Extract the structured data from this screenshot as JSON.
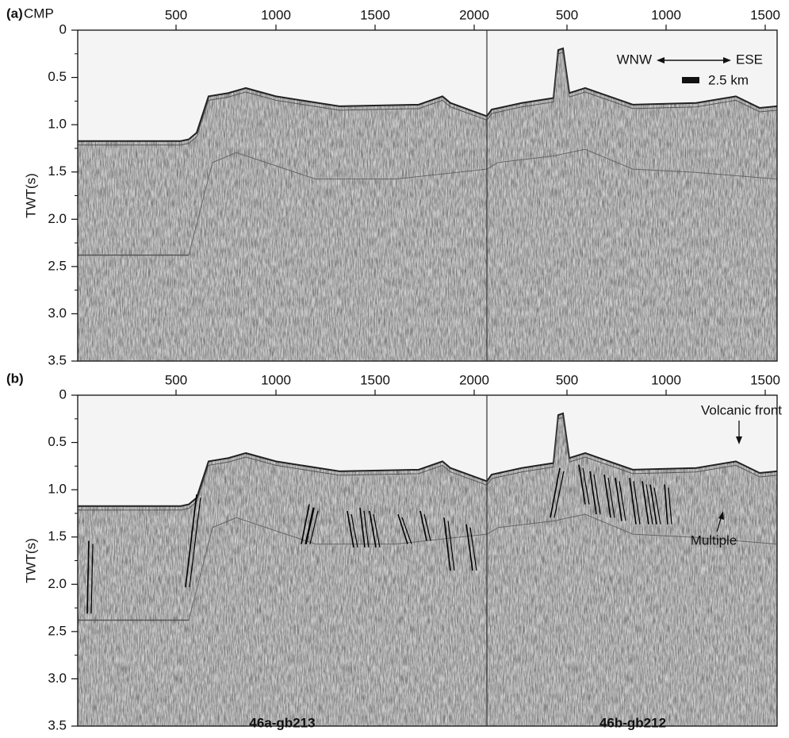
{
  "panels": [
    {
      "label": "(a)",
      "x_title": "CMP",
      "y_title": "TWT(s)",
      "y_ticks": [
        "0",
        "0.5",
        "1.0",
        "1.5",
        "2.0",
        "2.5",
        "3.0",
        "3.5"
      ],
      "left_ticks": [
        "500",
        "1000",
        "1500",
        "2000"
      ],
      "right_ticks": [
        "500",
        "1000",
        "1500"
      ],
      "direction_left": "WNW",
      "direction_right": "ESE",
      "scale": "2.5 km"
    },
    {
      "label": "(b)",
      "y_title": "TWT(s)",
      "y_ticks": [
        "0",
        "0.5",
        "1.0",
        "1.5",
        "2.0",
        "2.5",
        "3.0",
        "3.5"
      ],
      "left_ticks": [
        "500",
        "1000",
        "1500",
        "2000"
      ],
      "right_ticks": [
        "500",
        "1000",
        "1500"
      ],
      "annotation_volcanic": "Volcanic front",
      "annotation_multiple": "Multiple"
    }
  ],
  "profiles": [
    "46a-gb213",
    "46b-gb212"
  ]
}
